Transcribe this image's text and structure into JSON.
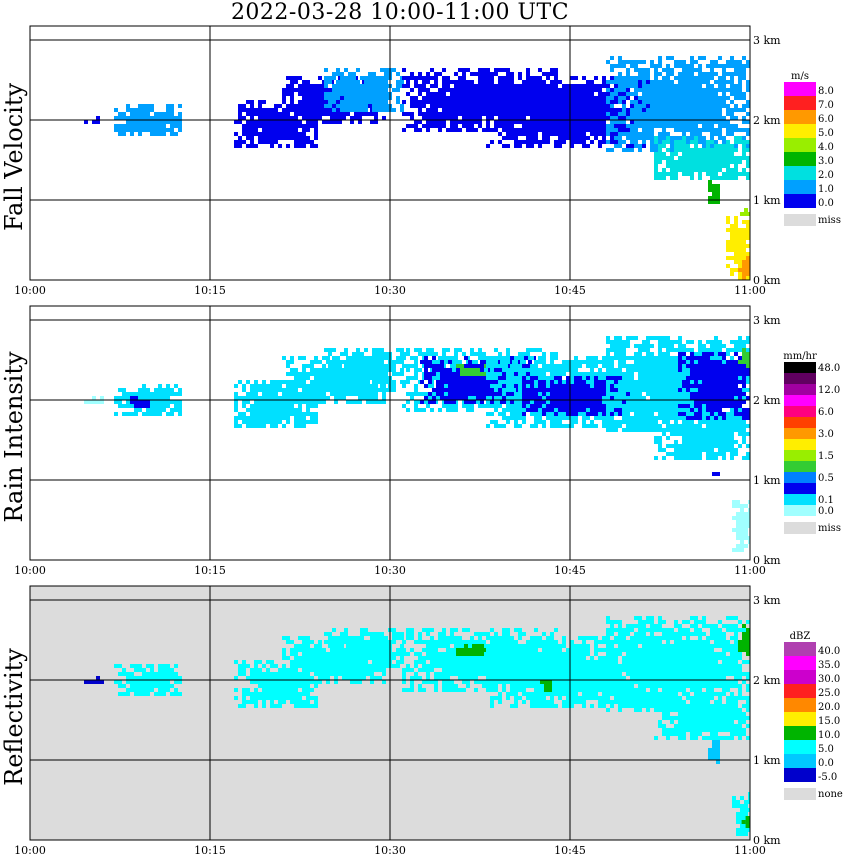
{
  "title": "2022-03-28   10:00-11:00 UTC",
  "time_ticks": [
    "10:00",
    "10:15",
    "10:30",
    "10:45",
    "11:00"
  ],
  "height_ticks": [
    "0 km",
    "1 km",
    "2 km",
    "3 km"
  ],
  "chart_data": [
    {
      "type": "heatmap",
      "ylabel": "Fall Velocity",
      "background": "#ffffff",
      "xlim": [
        "10:00",
        "11:00"
      ],
      "ylim_km": [
        0,
        3
      ],
      "colorbar": {
        "unit": "m/s",
        "labels": [
          "8.0",
          "7.0",
          "6.0",
          "5.0",
          "4.0",
          "3.0",
          "2.0",
          "1.0",
          "0.0"
        ],
        "colors": [
          "#ff00ff",
          "#ff2020",
          "#ff9900",
          "#ffee00",
          "#99ee00",
          "#00b400",
          "#00e0e0",
          "#00a0ff",
          "#0000ee"
        ],
        "missing_label": "miss",
        "missing_color": "#dcdcdc"
      },
      "echoes": [
        {
          "t0": 4.5,
          "t1": 6.0,
          "h0": 1.95,
          "h1": 2.05,
          "level": 8
        },
        {
          "t0": 7.0,
          "t1": 12.5,
          "h0": 1.8,
          "h1": 2.2,
          "level": 7
        },
        {
          "t0": 17.0,
          "t1": 24.0,
          "h0": 1.65,
          "h1": 2.25,
          "level": 8
        },
        {
          "t0": 21.0,
          "t1": 29.5,
          "h0": 1.95,
          "h1": 2.55,
          "level": 8
        },
        {
          "t0": 24.5,
          "t1": 31.0,
          "h0": 2.1,
          "h1": 2.65,
          "level": 7
        },
        {
          "t0": 31.0,
          "t1": 44.0,
          "h0": 1.85,
          "h1": 2.65,
          "level": 8
        },
        {
          "t0": 38.0,
          "t1": 52.0,
          "h0": 1.65,
          "h1": 2.55,
          "level": 8
        },
        {
          "t0": 48.0,
          "t1": 60.0,
          "h0": 1.6,
          "h1": 2.8,
          "level": 7
        },
        {
          "t0": 52.0,
          "t1": 60.0,
          "h0": 1.25,
          "h1": 1.8,
          "level": 6
        },
        {
          "t0": 56.5,
          "t1": 57.5,
          "h0": 0.95,
          "h1": 1.25,
          "level": 5
        },
        {
          "t0": 58.5,
          "t1": 60.0,
          "h0": 0.8,
          "h1": 0.9,
          "level": 4
        },
        {
          "t0": 58.0,
          "t1": 60.0,
          "h0": 0.0,
          "h1": 0.8,
          "level": 3
        },
        {
          "t0": 59.0,
          "t1": 60.0,
          "h0": 0.0,
          "h1": 0.3,
          "level": 2
        }
      ]
    },
    {
      "type": "heatmap",
      "ylabel": "Rain Intensity",
      "background": "#ffffff",
      "xlim": [
        "10:00",
        "11:00"
      ],
      "ylim_km": [
        0,
        3
      ],
      "colorbar": {
        "unit": "mm/hr",
        "labels": [
          "48.0",
          "",
          "12.0",
          "",
          "6.0",
          "",
          "3.0",
          "",
          "1.5",
          "",
          "0.5",
          "",
          "0.1",
          "0.0"
        ],
        "colors": [
          "#000000",
          "#600060",
          "#a000a0",
          "#ff00ff",
          "#ff0080",
          "#ff4000",
          "#ff9900",
          "#ffee00",
          "#99ee00",
          "#33cc33",
          "#0080ff",
          "#0000ee",
          "#00e0ff",
          "#a0ffff"
        ],
        "missing_label": "miss",
        "missing_color": "#dcdcdc"
      },
      "echoes": [
        {
          "t0": 4.5,
          "t1": 6.0,
          "h0": 1.95,
          "h1": 2.05,
          "level": 13
        },
        {
          "t0": 7.0,
          "t1": 12.5,
          "h0": 1.8,
          "h1": 2.2,
          "level": 12
        },
        {
          "t0": 8.0,
          "t1": 10.0,
          "h0": 1.9,
          "h1": 2.05,
          "level": 11
        },
        {
          "t0": 17.0,
          "t1": 24.0,
          "h0": 1.65,
          "h1": 2.25,
          "level": 12
        },
        {
          "t0": 21.0,
          "t1": 29.5,
          "h0": 1.95,
          "h1": 2.55,
          "level": 12
        },
        {
          "t0": 24.5,
          "t1": 31.0,
          "h0": 2.1,
          "h1": 2.65,
          "level": 12
        },
        {
          "t0": 31.0,
          "t1": 44.0,
          "h0": 1.85,
          "h1": 2.65,
          "level": 12
        },
        {
          "t0": 32.5,
          "t1": 42.0,
          "h0": 1.95,
          "h1": 2.55,
          "level": 11
        },
        {
          "t0": 35.5,
          "t1": 38.0,
          "h0": 2.3,
          "h1": 2.45,
          "level": 9
        },
        {
          "t0": 38.0,
          "t1": 52.0,
          "h0": 1.65,
          "h1": 2.55,
          "level": 12
        },
        {
          "t0": 41.0,
          "t1": 50.0,
          "h0": 1.8,
          "h1": 2.3,
          "level": 11
        },
        {
          "t0": 48.0,
          "t1": 60.0,
          "h0": 1.6,
          "h1": 2.8,
          "level": 12
        },
        {
          "t0": 52.0,
          "t1": 60.0,
          "h0": 1.25,
          "h1": 1.8,
          "level": 12
        },
        {
          "t0": 54.0,
          "t1": 60.0,
          "h0": 1.75,
          "h1": 2.6,
          "level": 11
        },
        {
          "t0": 59.0,
          "t1": 60.0,
          "h0": 2.4,
          "h1": 2.7,
          "level": 9
        },
        {
          "t0": 56.5,
          "t1": 57.5,
          "h0": 1.05,
          "h1": 1.15,
          "level": 11
        },
        {
          "t0": 58.5,
          "t1": 60.0,
          "h0": 0.1,
          "h1": 0.75,
          "level": 13
        }
      ]
    },
    {
      "type": "heatmap",
      "ylabel": "Reflectivity",
      "background": "#dcdcdc",
      "xlim": [
        "10:00",
        "11:00"
      ],
      "ylim_km": [
        0,
        3
      ],
      "colorbar": {
        "unit": "dBZ",
        "labels": [
          "40.0",
          "35.0",
          "30.0",
          "25.0",
          "20.0",
          "15.0",
          "10.0",
          "5.0",
          "0.0",
          "-5.0"
        ],
        "colors": [
          "#b040b0",
          "#ff00ff",
          "#cc00cc",
          "#ff2020",
          "#ff8800",
          "#ffee00",
          "#00b400",
          "#00ffff",
          "#00c8ff",
          "#0000cc"
        ],
        "missing_label": "none",
        "missing_color": "#dcdcdc"
      },
      "echoes": [
        {
          "t0": 4.5,
          "t1": 6.0,
          "h0": 1.95,
          "h1": 2.05,
          "level": 9
        },
        {
          "t0": 7.0,
          "t1": 12.5,
          "h0": 1.8,
          "h1": 2.2,
          "level": 7
        },
        {
          "t0": 17.0,
          "t1": 24.0,
          "h0": 1.65,
          "h1": 2.25,
          "level": 7
        },
        {
          "t0": 21.0,
          "t1": 29.5,
          "h0": 1.95,
          "h1": 2.55,
          "level": 7
        },
        {
          "t0": 24.5,
          "t1": 31.0,
          "h0": 2.1,
          "h1": 2.65,
          "level": 7
        },
        {
          "t0": 31.0,
          "t1": 44.0,
          "h0": 1.85,
          "h1": 2.65,
          "level": 7
        },
        {
          "t0": 35.5,
          "t1": 38.0,
          "h0": 2.3,
          "h1": 2.45,
          "level": 6
        },
        {
          "t0": 38.0,
          "t1": 52.0,
          "h0": 1.65,
          "h1": 2.55,
          "level": 7
        },
        {
          "t0": 42.5,
          "t1": 43.5,
          "h0": 1.85,
          "h1": 2.0,
          "level": 6
        },
        {
          "t0": 48.0,
          "t1": 60.0,
          "h0": 1.6,
          "h1": 2.8,
          "level": 7
        },
        {
          "t0": 52.0,
          "t1": 60.0,
          "h0": 1.25,
          "h1": 1.8,
          "level": 7
        },
        {
          "t0": 59.0,
          "t1": 60.0,
          "h0": 2.3,
          "h1": 2.7,
          "level": 6
        },
        {
          "t0": 56.5,
          "t1": 57.5,
          "h0": 0.95,
          "h1": 1.25,
          "level": 8
        },
        {
          "t0": 58.5,
          "t1": 60.0,
          "h0": 0.05,
          "h1": 0.6,
          "level": 7
        },
        {
          "t0": 59.3,
          "t1": 60.0,
          "h0": 0.15,
          "h1": 0.35,
          "level": 6
        }
      ]
    }
  ]
}
